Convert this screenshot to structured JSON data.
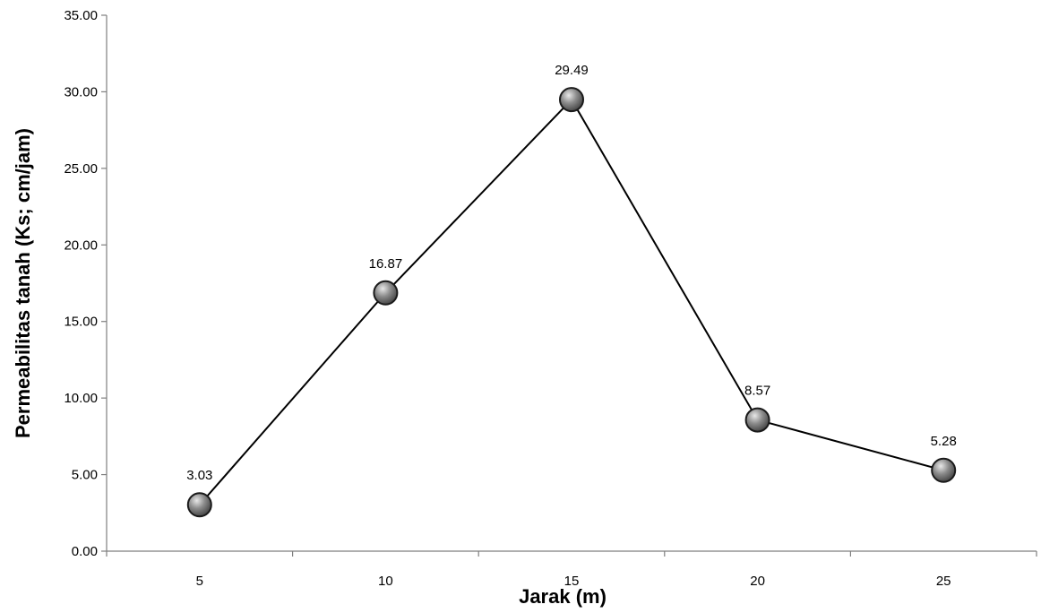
{
  "chart_data": {
    "type": "line",
    "title": "",
    "xlabel": "Jarak (m)",
    "ylabel": "Permeabilitas tanah (Ks; cm/jam)",
    "categories": [
      "5",
      "10",
      "15",
      "20",
      "25"
    ],
    "y_ticks": [
      "0.00",
      "5.00",
      "10.00",
      "15.00",
      "20.00",
      "25.00",
      "30.00",
      "35.00"
    ],
    "ylim": [
      0,
      35
    ],
    "grid": false,
    "legend": "none",
    "series": [
      {
        "values": [
          3.03,
          16.87,
          29.49,
          8.57,
          5.28
        ],
        "labels": [
          "3.03",
          "16.87",
          "29.49",
          "8.57",
          "5.28"
        ]
      }
    ],
    "colors": {
      "line": "#000000",
      "marker_light": "#e8e8e8",
      "marker_mid": "#8c8c8c",
      "marker_dark": "#3a3a3a",
      "axis": "#7f7f7f"
    }
  }
}
